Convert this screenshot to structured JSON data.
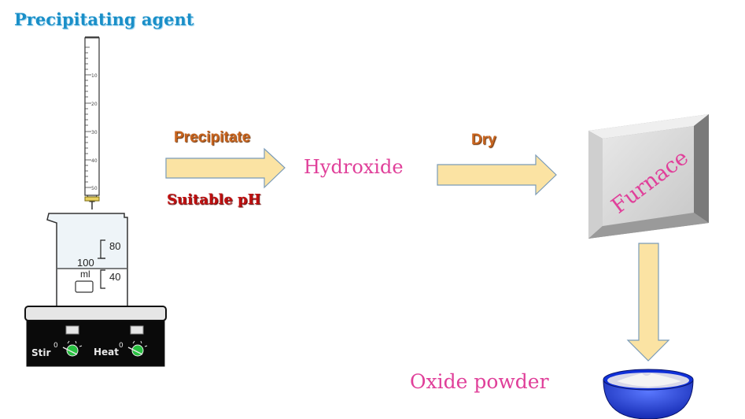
{
  "labels": {
    "precipitating_agent": "Precipitating agent",
    "precipitate": "Precipitate",
    "suitable_ph": "Suitable pH",
    "hydroxide": "Hydroxide",
    "dry": "Dry",
    "furnace": "Furnace",
    "oxide_powder": "Oxide powder"
  },
  "burette": {
    "scale": [
      "10",
      "20",
      "30",
      "40",
      "50"
    ]
  },
  "beaker": {
    "volume": "100",
    "unit": "ml",
    "marks": [
      "80",
      "40"
    ]
  },
  "hotplate": {
    "stir_label": "Stir",
    "heat_label": "Heat",
    "stir_knob_zero": "0",
    "heat_knob_zero": "0"
  },
  "colors": {
    "arrow_fill": "#fbe3a3",
    "arrow_stroke": "#7a9bb8",
    "label_orange": "#c8641e",
    "label_red": "#c01010",
    "label_pink": "#e0409a",
    "title_blue": "#1a8fc8",
    "bowl_blue": "#1030d8"
  }
}
